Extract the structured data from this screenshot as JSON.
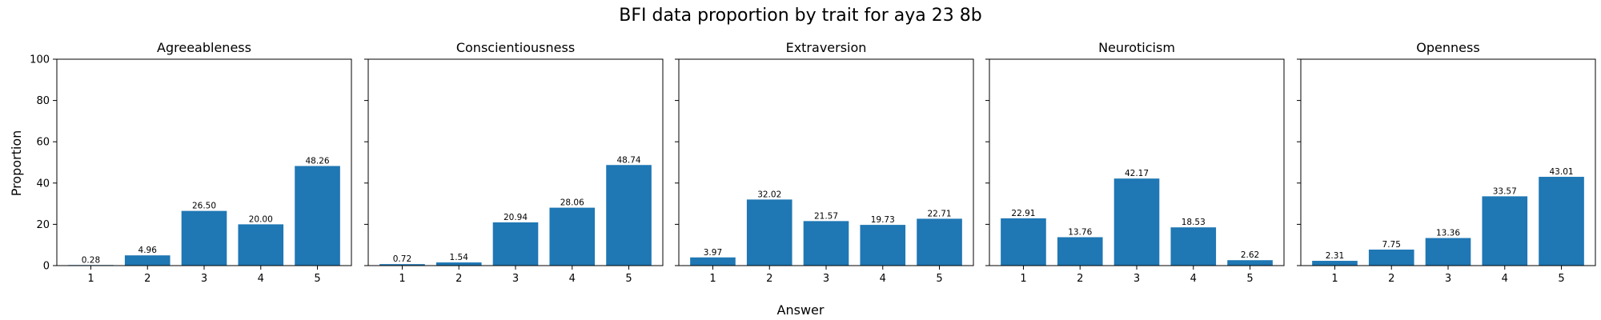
{
  "chart_data": {
    "type": "bar",
    "title": "BFI data proportion by trait for aya 23 8b",
    "xlabel": "Answer",
    "ylabel": "Proportion",
    "ylim": [
      0,
      100
    ],
    "yticks": [
      0,
      20,
      40,
      60,
      80,
      100
    ],
    "categories": [
      "1",
      "2",
      "3",
      "4",
      "5"
    ],
    "bar_color": "#1f77b4",
    "grid": false,
    "panels": [
      {
        "title": "Agreeableness",
        "values": [
          0.28,
          4.96,
          26.5,
          20.0,
          48.26
        ],
        "labels": [
          "0.28",
          "4.96",
          "26.50",
          "20.00",
          "48.26"
        ]
      },
      {
        "title": "Conscientiousness",
        "values": [
          0.72,
          1.54,
          20.94,
          28.06,
          48.74
        ],
        "labels": [
          "0.72",
          "1.54",
          "20.94",
          "28.06",
          "48.74"
        ]
      },
      {
        "title": "Extraversion",
        "values": [
          3.97,
          32.02,
          21.57,
          19.73,
          22.71
        ],
        "labels": [
          "3.97",
          "32.02",
          "21.57",
          "19.73",
          "22.71"
        ]
      },
      {
        "title": "Neuroticism",
        "values": [
          22.91,
          13.76,
          42.17,
          18.53,
          2.62
        ],
        "labels": [
          "22.91",
          "13.76",
          "42.17",
          "18.53",
          "2.62"
        ]
      },
      {
        "title": "Openness",
        "values": [
          2.31,
          7.75,
          13.36,
          33.57,
          43.01
        ],
        "labels": [
          "2.31",
          "7.75",
          "13.36",
          "33.57",
          "43.01"
        ]
      }
    ]
  }
}
